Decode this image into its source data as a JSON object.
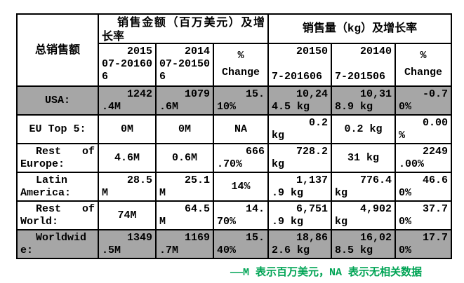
{
  "table": {
    "corner_header": "总销售额",
    "group_headers": [
      {
        "name": "sales-amount-group",
        "lines": [
          "销售金额（百万美元）及增",
          "长率"
        ]
      },
      {
        "name": "sales-volume-group",
        "lines": [
          "销售量（kg）及增长率"
        ]
      }
    ],
    "col_headers": [
      {
        "lines": [
          "2015",
          "07-20160",
          "6"
        ]
      },
      {
        "lines": [
          "2014",
          "07-20150",
          "6"
        ]
      },
      {
        "lines": [
          "%",
          "Change"
        ]
      },
      {
        "lines": [
          "20150",
          "7-201606"
        ]
      },
      {
        "lines": [
          "20140",
          "7-201506"
        ]
      },
      {
        "lines": [
          "%",
          "Change"
        ]
      }
    ],
    "rows": [
      {
        "label": [
          "USA:"
        ],
        "shaded": true,
        "cells": [
          [
            "1242",
            ".4M"
          ],
          [
            "1079",
            ".6M"
          ],
          [
            "15.",
            "10%"
          ],
          [
            "10,24",
            "4.5 kg"
          ],
          [
            "10,31",
            "8.9 kg"
          ],
          [
            "-0.7",
            "0%"
          ]
        ]
      },
      {
        "label": [
          "EU Top 5:"
        ],
        "shaded": false,
        "cells": [
          [
            "0M"
          ],
          [
            "0M"
          ],
          [
            "NA"
          ],
          [
            "0.2",
            "kg"
          ],
          [
            "0.2 kg"
          ],
          [
            "0.00",
            "%"
          ]
        ]
      },
      {
        "label": [
          "Rest of",
          "Europe:"
        ],
        "shaded": false,
        "cells": [
          [
            "4.6M"
          ],
          [
            "0.6M"
          ],
          [
            "666",
            ".70%"
          ],
          [
            "728.2",
            "kg"
          ],
          [
            "31 kg"
          ],
          [
            "2249",
            ".00%"
          ]
        ]
      },
      {
        "label": [
          "Latin",
          "America:"
        ],
        "shaded": false,
        "cells": [
          [
            "28.5",
            "M"
          ],
          [
            "25.1",
            "M"
          ],
          [
            "14%"
          ],
          [
            "1,137",
            ".9 kg"
          ],
          [
            "776.4",
            "kg"
          ],
          [
            "46.6",
            "0%"
          ]
        ]
      },
      {
        "label": [
          "Rest of",
          "World:"
        ],
        "shaded": false,
        "cells": [
          [
            "74M"
          ],
          [
            "64.5",
            "M"
          ],
          [
            "14.",
            "70%"
          ],
          [
            "6,751",
            ".9 kg"
          ],
          [
            "4,902",
            "kg"
          ],
          [
            "37.7",
            "0%"
          ]
        ]
      },
      {
        "label": [
          "Worldwid",
          "e:"
        ],
        "shaded": true,
        "cells": [
          [
            "1349",
            ".5M"
          ],
          [
            "1169",
            ".7M"
          ],
          [
            "15.",
            "40%"
          ],
          [
            "18,86",
            "2.6 kg"
          ],
          [
            "16,02",
            "8.5 kg"
          ],
          [
            "17.7",
            "0%"
          ]
        ]
      }
    ]
  },
  "footnote": "——M 表示百万美元，NA 表示无相关数据",
  "colors": {
    "shaded_row": "#a6a6a6",
    "footnote_green": "#00a455",
    "border": "#000000",
    "background": "#ffffff"
  },
  "chart_data": {
    "type": "table",
    "title": "总销售额",
    "group_headers": [
      "销售金额（百万美元）及增长率",
      "销售量（kg）及增长率"
    ],
    "columns": [
      "总销售额",
      "201507-201606",
      "201407-201506",
      "% Change",
      "201507-201606",
      "201407-201506",
      "% Change"
    ],
    "rows": [
      [
        "USA:",
        "1242.4M",
        "1079.6M",
        "15.10%",
        "10,244.5 kg",
        "10,318.9 kg",
        "-0.70%"
      ],
      [
        "EU Top 5:",
        "0M",
        "0M",
        "NA",
        "0.2 kg",
        "0.2 kg",
        "0.00%"
      ],
      [
        "Rest of Europe:",
        "4.6M",
        "0.6M",
        "666.70%",
        "728.2 kg",
        "31 kg",
        "2249.00%"
      ],
      [
        "Latin America:",
        "28.5M",
        "25.1M",
        "14%",
        "1,137.9 kg",
        "776.4 kg",
        "46.60%"
      ],
      [
        "Rest of World:",
        "74M",
        "64.5M",
        "14.70%",
        "6,751.9 kg",
        "4,902 kg",
        "37.70%"
      ],
      [
        "Worldwide:",
        "1349.5M",
        "1169.7M",
        "15.40%",
        "18,862.6 kg",
        "16,028.5 kg",
        "17.70%"
      ]
    ],
    "note": "——M 表示百万美元，NA 表示无相关数据",
    "shaded_rows": [
      "USA:",
      "Worldwide:"
    ]
  }
}
